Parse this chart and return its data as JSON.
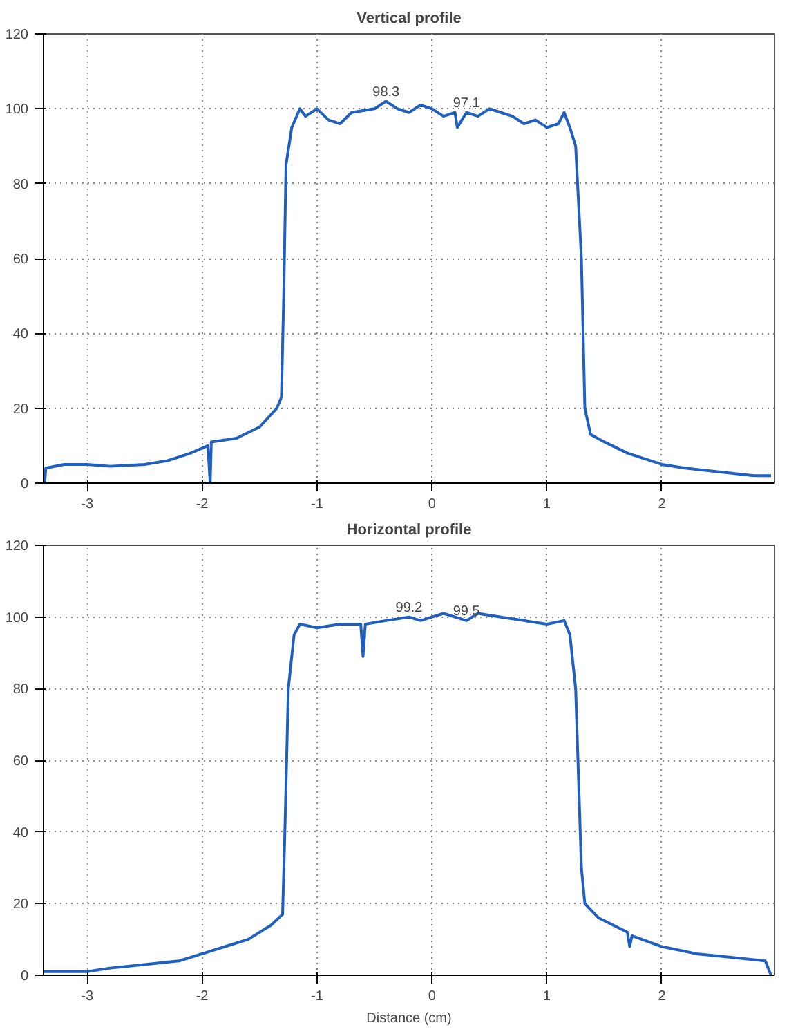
{
  "chart_data": [
    {
      "type": "line",
      "title": "Vertical profile",
      "xlim": [
        -3.38,
        2.98
      ],
      "ylim": [
        0,
        120
      ],
      "xticks": [
        -3,
        -2,
        -1,
        0,
        1,
        2
      ],
      "yticks": [
        0,
        20,
        40,
        60,
        80,
        100,
        120
      ],
      "grid": true,
      "line_style": "solid",
      "annotations": [
        {
          "text": "98.3",
          "x": -0.4,
          "y": 102
        },
        {
          "text": "97.1",
          "x": 0.3,
          "y": 99
        }
      ],
      "series": [
        {
          "color": "#1f5fbf",
          "x": [
            -3.37,
            -3.36,
            -3.2,
            -3.0,
            -2.8,
            -2.5,
            -2.3,
            -2.1,
            -1.95,
            -1.93,
            -1.92,
            -1.7,
            -1.5,
            -1.35,
            -1.31,
            -1.29,
            -1.27,
            -1.22,
            -1.15,
            -1.1,
            -1.0,
            -0.9,
            -0.8,
            -0.7,
            -0.5,
            -0.4,
            -0.3,
            -0.2,
            -0.1,
            0,
            0.1,
            0.2,
            0.22,
            0.3,
            0.4,
            0.5,
            0.6,
            0.7,
            0.8,
            0.9,
            1.0,
            1.1,
            1.15,
            1.2,
            1.25,
            1.3,
            1.33,
            1.38,
            1.5,
            1.7,
            2.0,
            2.2,
            2.5,
            2.8,
            2.95
          ],
          "values": [
            0,
            4,
            5,
            5,
            4.5,
            5,
            6,
            8,
            10,
            0,
            11,
            12,
            15,
            20,
            23,
            50,
            85,
            95,
            100,
            98,
            100,
            97,
            96,
            99,
            100,
            102,
            100,
            99,
            101,
            100,
            98,
            99,
            95,
            99,
            98,
            100,
            99,
            98,
            96,
            97,
            95,
            96,
            99,
            95,
            90,
            60,
            20,
            13,
            11,
            8,
            5,
            4,
            3,
            2,
            2
          ]
        }
      ]
    },
    {
      "type": "line",
      "title": "Horizontal profile",
      "xlabel": "Distance (cm)",
      "xlim": [
        -3.38,
        2.98
      ],
      "ylim": [
        0,
        120
      ],
      "xticks": [
        -3,
        -2,
        -1,
        0,
        1,
        2
      ],
      "yticks": [
        0,
        20,
        40,
        60,
        80,
        100,
        120
      ],
      "grid": true,
      "line_style": "solid",
      "annotations": [
        {
          "text": "99.2",
          "x": -0.2,
          "y": 100
        },
        {
          "text": "99.5",
          "x": 0.3,
          "y": 99
        }
      ],
      "series": [
        {
          "color": "#1f5fbf",
          "x": [
            -3.38,
            -3.0,
            -2.8,
            -2.5,
            -2.2,
            -2.0,
            -1.8,
            -1.6,
            -1.4,
            -1.3,
            -1.28,
            -1.25,
            -1.2,
            -1.15,
            -1.0,
            -0.8,
            -0.62,
            -0.6,
            -0.58,
            -0.4,
            -0.2,
            -0.1,
            0,
            0.1,
            0.2,
            0.3,
            0.4,
            0.6,
            0.8,
            1.0,
            1.15,
            1.2,
            1.25,
            1.3,
            1.33,
            1.45,
            1.7,
            1.72,
            1.74,
            2.0,
            2.3,
            2.6,
            2.9,
            2.95
          ],
          "values": [
            1,
            1,
            2,
            3,
            4,
            6,
            8,
            10,
            14,
            17,
            40,
            80,
            95,
            98,
            97,
            98,
            98,
            89,
            98,
            99,
            100,
            99,
            100,
            101,
            100,
            99,
            101,
            100,
            99,
            98,
            99,
            95,
            80,
            30,
            20,
            16,
            12,
            8,
            11,
            8,
            6,
            5,
            4,
            0
          ]
        }
      ]
    }
  ]
}
